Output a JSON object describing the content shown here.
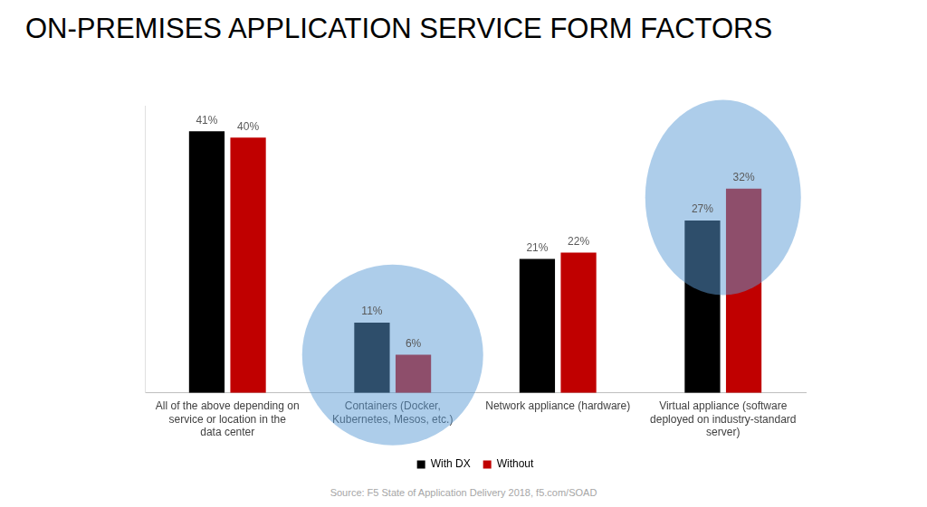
{
  "chart_data": {
    "type": "bar",
    "title": "ON-PREMISES APPLICATION SERVICE FORM FACTORS",
    "categories": [
      "All of the above depending on service or location in the data center",
      "Containers (Docker, Kubernetes, Mesos, etc.)",
      "Network appliance (hardware)",
      "Virtual appliance (software deployed on industry-standard server)"
    ],
    "series": [
      {
        "name": "With DX",
        "color": "#000000",
        "values": [
          41,
          11,
          21,
          27
        ],
        "value_labels": [
          "41%",
          "11%",
          "21%",
          "27%"
        ]
      },
      {
        "name": "Without",
        "color": "#c00000",
        "values": [
          40,
          6,
          22,
          32
        ],
        "value_labels": [
          "40%",
          "6%",
          "22%",
          "32%"
        ]
      }
    ],
    "ylim": [
      0,
      45
    ],
    "grid": false,
    "legend": "bottom",
    "data_labels": true,
    "tick_labels": "x",
    "source": "Source: F5 State of Application Delivery 2018, f5.com/SOAD"
  }
}
